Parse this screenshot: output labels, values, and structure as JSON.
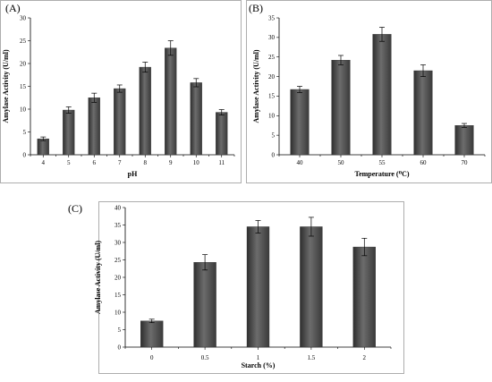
{
  "chart_data": [
    {
      "type": "bar",
      "panel": "(A)",
      "xlabel": "pH",
      "ylabel": "Amylase Activity (U/ml)",
      "categories": [
        "4",
        "5",
        "6",
        "7",
        "8",
        "9",
        "10",
        "11"
      ],
      "values": [
        3.5,
        9.8,
        12.5,
        14.5,
        19.2,
        23.4,
        15.8,
        9.3
      ],
      "errors": [
        0.4,
        0.7,
        1.0,
        0.8,
        1.1,
        1.6,
        0.9,
        0.6
      ],
      "ylim": [
        0,
        30
      ],
      "yticks": [
        0,
        5,
        10,
        15,
        20,
        25,
        30
      ],
      "grid": false,
      "bar_color": "#555555"
    },
    {
      "type": "bar",
      "panel": "(B)",
      "xlabel": "Temperature (⁰C)",
      "ylabel": "Amylase Activity (U/ml)",
      "categories": [
        "40",
        "50",
        "55",
        "60",
        "70"
      ],
      "values": [
        16.7,
        24.2,
        30.8,
        21.5,
        7.5
      ],
      "errors": [
        0.8,
        1.2,
        1.8,
        1.5,
        0.5
      ],
      "ylim": [
        0,
        35
      ],
      "yticks": [
        0,
        5,
        10,
        15,
        20,
        25,
        30,
        35
      ],
      "grid": false,
      "bar_color": "#555555"
    },
    {
      "type": "bar",
      "panel": "(C)",
      "xlabel": "Starch (%)",
      "ylabel": "Amylase Activity (U/ml)",
      "categories": [
        "0",
        "0.5",
        "1",
        "1.5",
        "2"
      ],
      "values": [
        7.5,
        24.3,
        34.5,
        34.5,
        28.7
      ],
      "errors": [
        0.5,
        2.2,
        1.8,
        2.7,
        2.5
      ],
      "ylim": [
        0,
        40
      ],
      "yticks": [
        0,
        5,
        10,
        15,
        20,
        25,
        30,
        35,
        40
      ],
      "grid": false,
      "bar_color": "#555555"
    }
  ]
}
